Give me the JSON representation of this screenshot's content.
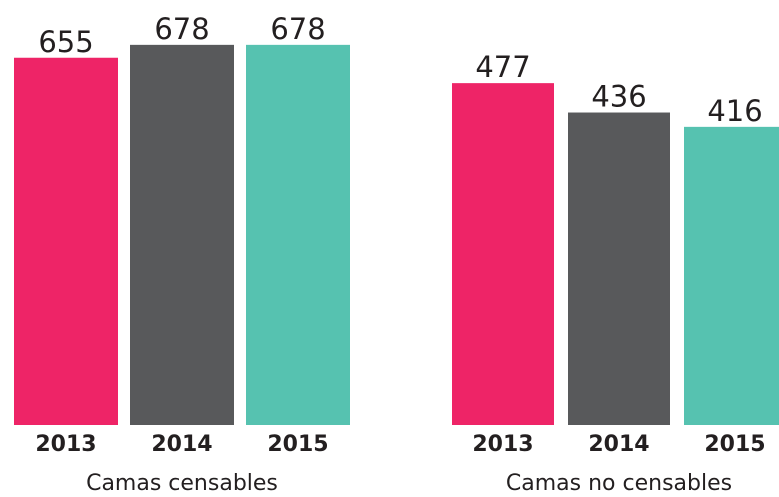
{
  "chart_data": [
    {
      "type": "bar",
      "title": "Camas censables",
      "categories": [
        "2013",
        "2014",
        "2015"
      ],
      "values": [
        655,
        678,
        678
      ],
      "colors": [
        "#ee2467",
        "#58595b",
        "#56c2b0"
      ],
      "ylim": [
        0,
        758
      ]
    },
    {
      "type": "bar",
      "title": "Camas no censables",
      "categories": [
        "2013",
        "2014",
        "2015"
      ],
      "values": [
        477,
        436,
        416
      ],
      "colors": [
        "#ee2467",
        "#58595b",
        "#56c2b0"
      ],
      "ylim": [
        0,
        593
      ]
    }
  ]
}
